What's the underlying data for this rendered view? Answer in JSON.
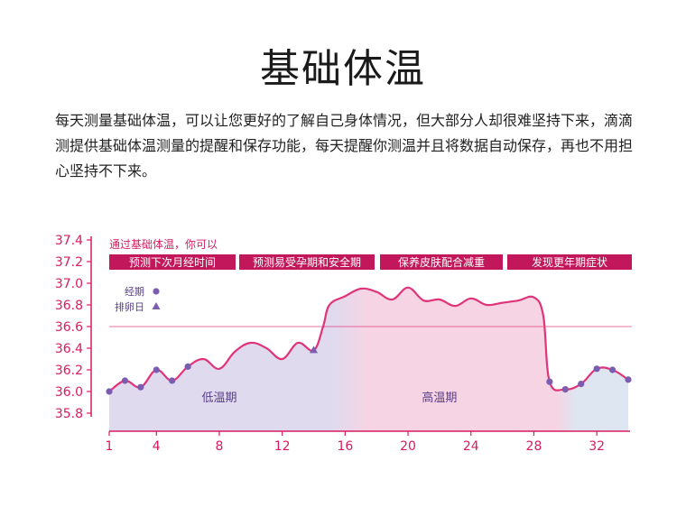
{
  "title": "基础体温",
  "intro": "每天测量基础体温，可以让您更好的了解自己身体情况，但大部分人却很难坚持下来，滴滴测提供基础体温测量的提醒和保存功能，每天提醒你测温并且将数据自动保存，再也不用担心坚持不下来。",
  "chart_data": {
    "type": "line",
    "title": "",
    "xlabel": "",
    "ylabel": "",
    "xlim": [
      1,
      34
    ],
    "ylim": [
      35.7,
      37.4
    ],
    "x_ticks": [
      1,
      4,
      8,
      12,
      16,
      20,
      24,
      28,
      32
    ],
    "y_ticks": [
      37.4,
      37.2,
      37.0,
      36.8,
      36.6,
      36.4,
      36.2,
      36.0,
      35.8
    ],
    "reference_line": 36.6,
    "grid": false,
    "series": [
      {
        "x": [
          1,
          2,
          3,
          4,
          5,
          6,
          7,
          8,
          9,
          10,
          11,
          12,
          13,
          14,
          14.6,
          15,
          16,
          17,
          18,
          19,
          20,
          21,
          22,
          23,
          24,
          25,
          26,
          27,
          28,
          28.6,
          29,
          30,
          31,
          32,
          33,
          34
        ],
        "y": [
          36.0,
          36.1,
          36.04,
          36.2,
          36.1,
          36.23,
          36.3,
          36.21,
          36.37,
          36.45,
          36.4,
          36.3,
          36.45,
          36.38,
          36.6,
          36.8,
          36.88,
          36.95,
          36.92,
          36.85,
          36.96,
          36.84,
          36.85,
          36.79,
          36.86,
          36.8,
          36.82,
          36.84,
          36.87,
          36.7,
          36.09,
          36.02,
          36.07,
          36.21,
          36.2,
          36.11
        ]
      }
    ],
    "markers": [
      {
        "label": "经期",
        "symbol": "circle",
        "x": [
          1,
          2,
          3,
          4,
          5,
          6,
          29,
          30,
          31,
          32,
          33,
          34
        ]
      },
      {
        "label": "排卵日",
        "symbol": "triangle",
        "x": [
          14
        ]
      }
    ],
    "regions": [
      {
        "label": "低温期",
        "x_start": 1,
        "x_end": 14.5,
        "label_x": 8,
        "label_y": 35.95
      },
      {
        "label": "高温期",
        "x_start": 14.5,
        "x_end": 29,
        "label_x": 22,
        "label_y": 35.95
      },
      {
        "label": "",
        "x_start": 29,
        "x_end": 34
      }
    ],
    "annotation": "通过基础体温，你可以",
    "banners": [
      "预测下次月经时间",
      "预测易受孕期和安全期",
      "保养皮肤配合减重",
      "发现更年期症状"
    ],
    "colors": {
      "line": "#e0347a",
      "marker": "#7a5cb0",
      "axis": "#d81b60",
      "banner": "#c2185b",
      "low_fill": "#dcd6ec",
      "high_fill": "#f6cfe0",
      "post_fill": "#d9e3ef"
    }
  }
}
